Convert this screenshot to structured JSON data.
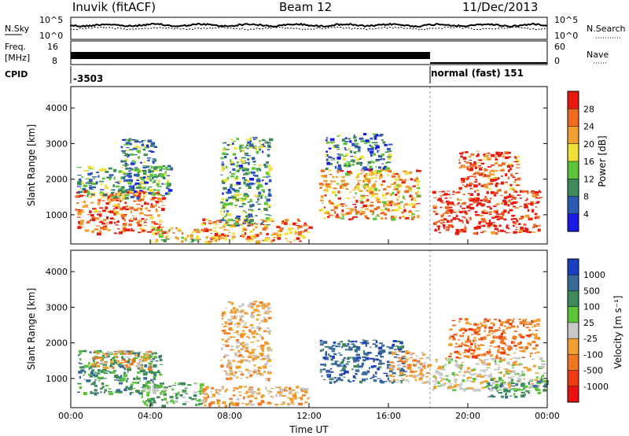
{
  "header": {
    "station": "Inuvik (fitACF)",
    "beam": "Beam 12",
    "date": "11/Dec/2013"
  },
  "status_panels": {
    "nsky_label": "N.Sky",
    "nsearch_label": "N.Search",
    "freq_label_1": "Freq.",
    "freq_label_2": "[MHz]",
    "nave_label": "Nave",
    "cpid_label": "CPID",
    "left_ticks_top": [
      "10^5",
      "10^0"
    ],
    "right_ticks_top": [
      "10^5",
      "10^0"
    ],
    "left_ticks_mid": [
      "16",
      "8"
    ],
    "right_ticks_mid": [
      "60",
      "0"
    ],
    "cpid_before": "-3503",
    "cpid_after": "normal (fast) 151",
    "cpid_switch_hour": 18.1
  },
  "chart_data": [
    {
      "type": "heatmap",
      "panel": "power",
      "ylabel": "Slant Range [km]",
      "xlabel": "",
      "x_ticks": [
        "00:00",
        "04:00",
        "08:00",
        "12:00",
        "16:00",
        "20:00",
        "00:00"
      ],
      "y_ticks": [
        "1000",
        "2000",
        "3000",
        "4000"
      ],
      "x_range_hours": [
        0,
        24
      ],
      "ylim_km": [
        180,
        4600
      ],
      "colorbar_title": "Power [dB]",
      "colorbar_ticks": [
        "4",
        "8",
        "12",
        "16",
        "20",
        "24",
        "28"
      ],
      "colorbar_colors": [
        "#1a1ae6",
        "#2a5ab4",
        "#3f8a5a",
        "#5cc33a",
        "#f0e13a",
        "#f0a030",
        "#f06a20",
        "#e81a10"
      ],
      "regions": [
        {
          "t0": 0.2,
          "t1": 4.6,
          "r0": 500,
          "r1": 1700,
          "level": 0.85
        },
        {
          "t0": 0.3,
          "t1": 5.0,
          "r0": 1500,
          "r1": 2400,
          "level": 0.35
        },
        {
          "t0": 2.5,
          "t1": 4.2,
          "r0": 1900,
          "r1": 3200,
          "level": 0.3
        },
        {
          "t0": 4.0,
          "t1": 6.5,
          "r0": 250,
          "r1": 700,
          "level": 0.6
        },
        {
          "t0": 6.5,
          "t1": 12.0,
          "r0": 250,
          "r1": 900,
          "level": 0.75
        },
        {
          "t0": 7.5,
          "t1": 10.0,
          "r0": 700,
          "r1": 3200,
          "level": 0.35
        },
        {
          "t0": 12.5,
          "t1": 17.5,
          "r0": 900,
          "r1": 2300,
          "level": 0.7
        },
        {
          "t0": 12.8,
          "t1": 16.0,
          "r0": 2300,
          "r1": 3300,
          "level": 0.3
        },
        {
          "t0": 18.2,
          "t1": 23.6,
          "r0": 500,
          "r1": 1700,
          "level": 0.95
        },
        {
          "t0": 19.5,
          "t1": 22.5,
          "r0": 1700,
          "r1": 2800,
          "level": 0.85
        }
      ]
    },
    {
      "type": "heatmap",
      "panel": "velocity",
      "ylabel": "Slant Range [km]",
      "xlabel": "Time UT",
      "x_ticks": [
        "00:00",
        "04:00",
        "08:00",
        "12:00",
        "16:00",
        "20:00",
        "00:00"
      ],
      "y_ticks": [
        "1000",
        "2000",
        "3000",
        "4000"
      ],
      "x_range_hours": [
        0,
        24
      ],
      "ylim_km": [
        180,
        4600
      ],
      "colorbar_title": "Velocity [m s⁻¹]",
      "colorbar_ticks": [
        "1000",
        "500",
        "100",
        "25",
        "-25",
        "-100",
        "-500",
        "-1000"
      ],
      "colorbar_colors": [
        "#1a3fc0",
        "#3a6a9a",
        "#3f8a5a",
        "#5cc33a",
        "#c8c8c8",
        "#f0a030",
        "#f07820",
        "#f03a10",
        "#e81010"
      ],
      "regions": [
        {
          "t0": 0.3,
          "t1": 4.5,
          "r0": 600,
          "r1": 1800,
          "color": 2
        },
        {
          "t0": 1.0,
          "t1": 4.0,
          "r0": 1300,
          "r1": 1800,
          "color": 5
        },
        {
          "t0": 3.5,
          "t1": 6.5,
          "r0": 250,
          "r1": 900,
          "color": 3
        },
        {
          "t0": 6.5,
          "t1": 12.0,
          "r0": 250,
          "r1": 800,
          "color": 5
        },
        {
          "t0": 7.5,
          "t1": 10.0,
          "r0": 1000,
          "r1": 3200,
          "color": 5
        },
        {
          "t0": 12.5,
          "t1": 16.8,
          "r0": 900,
          "r1": 2100,
          "color": 1
        },
        {
          "t0": 16.0,
          "t1": 18.0,
          "r0": 900,
          "r1": 1800,
          "color": 5
        },
        {
          "t0": 18.2,
          "t1": 23.8,
          "r0": 700,
          "r1": 1600,
          "color": 4
        },
        {
          "t0": 19.0,
          "t1": 23.5,
          "r0": 1600,
          "r1": 2700,
          "color": 6
        },
        {
          "t0": 21.0,
          "t1": 24.0,
          "r0": 500,
          "r1": 1000,
          "color": 2
        }
      ]
    }
  ]
}
